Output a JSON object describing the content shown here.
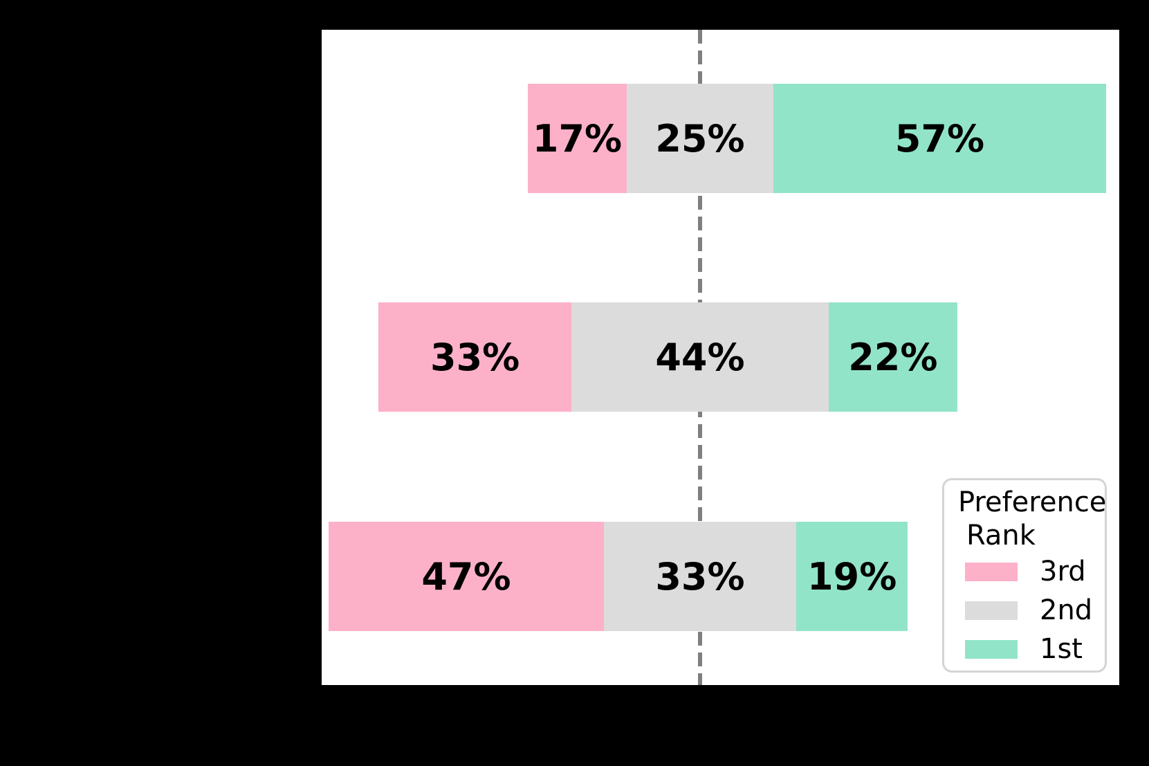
{
  "canvas": {
    "background_color": "#000000",
    "plot_background_color": "#ffffff"
  },
  "chart_data": {
    "type": "bar",
    "orientation": "horizontal",
    "variant": "diverging_stacked",
    "unit": "percent",
    "grid": false,
    "axis_labels_visible": false,
    "series": [
      {
        "name": "3rd",
        "color": "#fcb1c9",
        "values": [
          17,
          33,
          47
        ]
      },
      {
        "name": "2nd",
        "color": "#dcdcdc",
        "values": [
          25,
          44,
          33
        ]
      },
      {
        "name": "1st",
        "color": "#92e4c9",
        "values": [
          57,
          22,
          19
        ]
      }
    ],
    "rows": [
      {
        "segments": [
          {
            "rank": "3rd",
            "pct": 17,
            "label": "17%"
          },
          {
            "rank": "2nd",
            "pct": 25,
            "label": "25%"
          },
          {
            "rank": "1st",
            "pct": 57,
            "label": "57%"
          }
        ]
      },
      {
        "segments": [
          {
            "rank": "3rd",
            "pct": 33,
            "label": "33%"
          },
          {
            "rank": "2nd",
            "pct": 44,
            "label": "44%"
          },
          {
            "rank": "1st",
            "pct": 22,
            "label": "22%"
          }
        ]
      },
      {
        "segments": [
          {
            "rank": "3rd",
            "pct": 47,
            "label": "47%"
          },
          {
            "rank": "2nd",
            "pct": 33,
            "label": "33%"
          },
          {
            "rank": "1st",
            "pct": 19,
            "label": "19%"
          }
        ]
      }
    ],
    "reference_line": {
      "style": "dashed",
      "color": "#7f7f7f",
      "aligned_to": "center of 2nd-rank segment"
    },
    "legend": {
      "title_lines": [
        "Preference",
        "Rank"
      ],
      "position": "lower right",
      "entries": [
        {
          "label": "3rd",
          "color": "#fcb1c9"
        },
        {
          "label": "2nd",
          "color": "#dcdcdc"
        },
        {
          "label": "1st",
          "color": "#92e4c9"
        }
      ]
    }
  }
}
